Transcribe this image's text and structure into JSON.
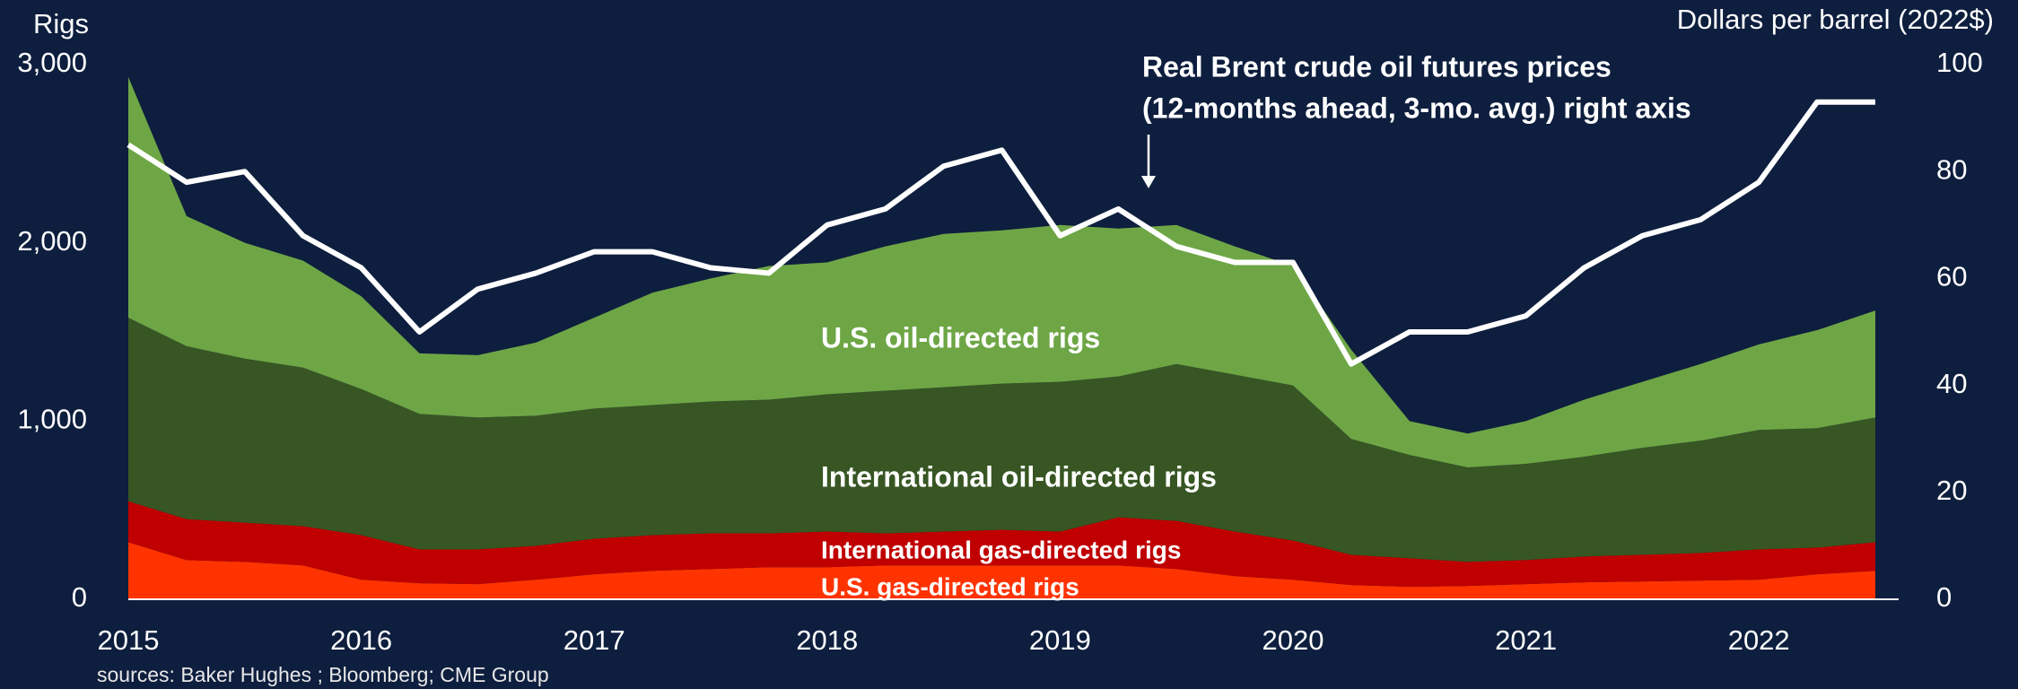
{
  "chart_data": {
    "type": "stacked_area",
    "y_label": "Rigs",
    "y2_label": "Dollars per barrel (2022$)",
    "source": "sources: Baker Hughes ; Bloomberg; CME Group",
    "x": [
      2015,
      2015.25,
      2015.5,
      2015.75,
      2016,
      2016.25,
      2016.5,
      2016.75,
      2017,
      2017.25,
      2017.5,
      2017.75,
      2018,
      2018.25,
      2018.5,
      2018.75,
      2019,
      2019.25,
      2019.5,
      2019.75,
      2020,
      2020.25,
      2020.5,
      2020.75,
      2021,
      2021.25,
      2021.5,
      2021.75,
      2022,
      2022.25,
      2022.5
    ],
    "xlim": [
      2015,
      2022.6
    ],
    "xticks": [
      2015,
      2016,
      2017,
      2018,
      2019,
      2020,
      2021,
      2022
    ],
    "ylim": [
      0,
      3000
    ],
    "yticks": [
      0,
      {
        "value": 1000,
        "label": "1,000"
      },
      {
        "value": 2000,
        "label": "2,000"
      },
      {
        "value": 3000,
        "label": "3,000"
      }
    ],
    "y2lim": [
      0,
      100
    ],
    "y2ticks": [
      0,
      20,
      40,
      60,
      80,
      100
    ],
    "series": [
      {
        "name": "U.S. gas-directed rigs",
        "color": "#ff3300",
        "values": [
          320,
          220,
          210,
          190,
          110,
          90,
          85,
          110,
          140,
          160,
          170,
          180,
          180,
          190,
          190,
          190,
          190,
          190,
          170,
          130,
          110,
          80,
          70,
          75,
          85,
          95,
          100,
          105,
          110,
          140,
          160
        ]
      },
      {
        "name": "International gas-directed rigs",
        "color": "#c00000",
        "values": [
          230,
          230,
          220,
          220,
          250,
          190,
          195,
          190,
          200,
          200,
          200,
          190,
          200,
          180,
          190,
          200,
          190,
          270,
          270,
          250,
          220,
          170,
          160,
          135,
          135,
          145,
          150,
          155,
          170,
          150,
          160
        ]
      },
      {
        "name": "International oil-directed rigs",
        "color": "#375623",
        "values": [
          1030,
          970,
          920,
          890,
          820,
          760,
          740,
          730,
          730,
          730,
          740,
          750,
          770,
          800,
          810,
          820,
          840,
          790,
          880,
          880,
          870,
          650,
          580,
          530,
          540,
          560,
          600,
          630,
          670,
          670,
          700
        ]
      },
      {
        "name": "U.S. oil-directed rigs",
        "color": "#6ea646",
        "values": [
          1350,
          730,
          650,
          600,
          520,
          340,
          350,
          410,
          510,
          630,
          690,
          750,
          740,
          810,
          860,
          860,
          880,
          830,
          780,
          720,
          670,
          500,
          190,
          190,
          240,
          320,
          370,
          430,
          480,
          550,
          600
        ]
      },
      {
        "name": "Real Brent crude oil futures prices",
        "color": "#ffffff",
        "axis": "y2",
        "type": "line",
        "values": [
          85,
          78,
          80,
          68,
          62,
          50,
          58,
          61,
          65,
          65,
          62,
          61,
          70,
          73,
          81,
          84,
          68,
          73,
          66,
          63,
          63,
          44,
          50,
          50,
          53,
          62,
          68,
          71,
          78,
          93,
          93
        ]
      }
    ],
    "annotation": "(12-months ahead, 3-mo. avg.) right axis"
  }
}
